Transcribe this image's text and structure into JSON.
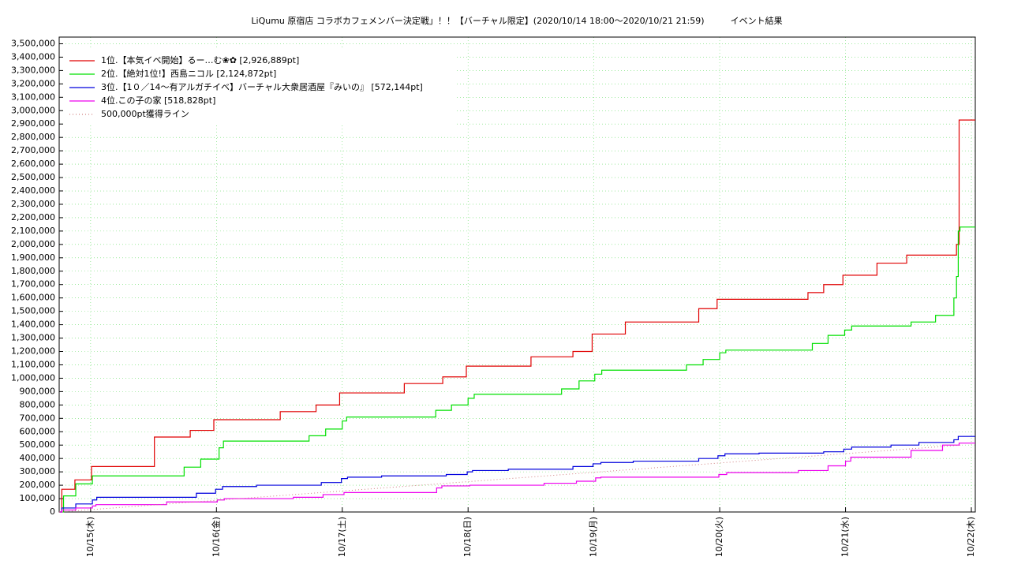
{
  "chart_data": {
    "type": "line",
    "step": "post",
    "title": "LiQumu 原宿店 コラボカフェメンバー決定戦」！！【バーチャル限定】(2020/10/14 18:00〜2020/10/21 21:59)　　　イベント結果",
    "xlim": [
      "2020-10-14T18:00",
      "2020-10-22T00:45"
    ],
    "xticks": [
      {
        "value": "2020-10-15T00:00",
        "label": "10/15(木)"
      },
      {
        "value": "2020-10-16T00:00",
        "label": "10/16(金)"
      },
      {
        "value": "2020-10-17T00:00",
        "label": "10/17(土)"
      },
      {
        "value": "2020-10-18T00:00",
        "label": "10/18(日)"
      },
      {
        "value": "2020-10-19T00:00",
        "label": "10/19(月)"
      },
      {
        "value": "2020-10-20T00:00",
        "label": "10/20(火)"
      },
      {
        "value": "2020-10-21T00:00",
        "label": "10/21(水)"
      },
      {
        "value": "2020-10-22T00:00",
        "label": "10/22(木)"
      }
    ],
    "ylim": [
      0,
      3550000
    ],
    "yticks": [
      0,
      {
        "value": 100000,
        "label": "100,000"
      },
      {
        "value": 200000,
        "label": "200,000"
      },
      {
        "value": 300000,
        "label": "300,000"
      },
      {
        "value": 400000,
        "label": "400,000"
      },
      {
        "value": 500000,
        "label": "500,000"
      },
      {
        "value": 600000,
        "label": "600,000"
      },
      {
        "value": 700000,
        "label": "700,000"
      },
      {
        "value": 800000,
        "label": "800,000"
      },
      {
        "value": 900000,
        "label": "900,000"
      },
      {
        "value": 1000000,
        "label": "1,000,000"
      },
      {
        "value": 1100000,
        "label": "1,100,000"
      },
      {
        "value": 1200000,
        "label": "1,200,000"
      },
      {
        "value": 1300000,
        "label": "1,300,000"
      },
      {
        "value": 1400000,
        "label": "1,400,000"
      },
      {
        "value": 1500000,
        "label": "1,500,000"
      },
      {
        "value": 1600000,
        "label": "1,600,000"
      },
      {
        "value": 1700000,
        "label": "1,700,000"
      },
      {
        "value": 1800000,
        "label": "1,800,000"
      },
      {
        "value": 1900000,
        "label": "1,900,000"
      },
      {
        "value": 2000000,
        "label": "2,000,000"
      },
      {
        "value": 2100000,
        "label": "2,100,000"
      },
      {
        "value": 2200000,
        "label": "2,200,000"
      },
      {
        "value": 2300000,
        "label": "2,300,000"
      },
      {
        "value": 2400000,
        "label": "2,400,000"
      },
      {
        "value": 2500000,
        "label": "2,500,000"
      },
      {
        "value": 2600000,
        "label": "2,600,000"
      },
      {
        "value": 2700000,
        "label": "2,700,000"
      },
      {
        "value": 2800000,
        "label": "2,800,000"
      },
      {
        "value": 2900000,
        "label": "2,900,000"
      },
      {
        "value": 3000000,
        "label": "3,000,000"
      },
      {
        "value": 3100000,
        "label": "3,100,000"
      },
      {
        "value": 3200000,
        "label": "3,200,000"
      },
      {
        "value": 3300000,
        "label": "3,300,000"
      },
      {
        "value": 3400000,
        "label": "3,400,000"
      },
      {
        "value": 3500000,
        "label": "3,500,000"
      }
    ],
    "grid": true,
    "legend": "upper left",
    "series": [
      {
        "name": "1位.【本気イベ開始】るー…む❀✿ [2,926,889pt]",
        "color": "#e00000",
        "x": [
          "2020-10-14T18:00",
          "2020-10-14T18:30",
          "2020-10-14T21:00",
          "2020-10-15T00:10",
          "2020-10-15T12:10",
          "2020-10-15T19:00",
          "2020-10-15T23:30",
          "2020-10-16T12:10",
          "2020-10-16T19:00",
          "2020-10-16T23:30",
          "2020-10-17T11:50",
          "2020-10-17T19:10",
          "2020-10-17T23:40",
          "2020-10-18T12:00",
          "2020-10-18T20:00",
          "2020-10-18T23:40",
          "2020-10-19T06:00",
          "2020-10-19T20:00",
          "2020-10-19T23:30",
          "2020-10-20T16:50",
          "2020-10-20T19:50",
          "2020-10-20T23:30",
          "2020-10-21T06:00",
          "2020-10-21T11:40",
          "2020-10-21T21:10",
          "2020-10-21T21:40"
        ],
        "values": [
          0,
          170000,
          240000,
          340000,
          560000,
          610000,
          690000,
          750000,
          800000,
          890000,
          960000,
          1010000,
          1090000,
          1160000,
          1200000,
          1330000,
          1420000,
          1520000,
          1590000,
          1640000,
          1700000,
          1770000,
          1860000,
          1920000,
          2000000,
          2930000
        ]
      },
      {
        "name": "2位.【絶対1位!】西島ニコル [2,124,872pt]",
        "color": "#00e000",
        "x": [
          "2020-10-14T18:00",
          "2020-10-14T18:50",
          "2020-10-14T21:10",
          "2020-10-15T00:20",
          "2020-10-15T17:50",
          "2020-10-15T21:00",
          "2020-10-16T00:30",
          "2020-10-16T01:20",
          "2020-10-16T17:40",
          "2020-10-16T20:50",
          "2020-10-17T00:00",
          "2020-10-17T00:50",
          "2020-10-17T17:50",
          "2020-10-17T20:50",
          "2020-10-18T00:00",
          "2020-10-18T01:10",
          "2020-10-18T17:50",
          "2020-10-18T21:10",
          "2020-10-19T00:10",
          "2020-10-19T01:30",
          "2020-10-19T17:40",
          "2020-10-19T20:50",
          "2020-10-20T00:00",
          "2020-10-20T01:10",
          "2020-10-20T17:40",
          "2020-10-20T20:40",
          "2020-10-20T23:50",
          "2020-10-21T01:10",
          "2020-10-21T12:30",
          "2020-10-21T17:10",
          "2020-10-21T20:40",
          "2020-10-21T21:10",
          "2020-10-21T21:30",
          "2020-10-21T21:50"
        ],
        "values": [
          0,
          120000,
          210000,
          270000,
          335000,
          395000,
          480000,
          530000,
          570000,
          620000,
          680000,
          710000,
          760000,
          800000,
          850000,
          880000,
          920000,
          980000,
          1030000,
          1060000,
          1100000,
          1140000,
          1190000,
          1210000,
          1260000,
          1320000,
          1360000,
          1390000,
          1420000,
          1470000,
          1600000,
          1760000,
          2100000,
          2130000
        ]
      },
      {
        "name": "3位.【1０／14〜有アルガチイベ】バーチャル大衆居酒屋『みいの』 [572,144pt]",
        "color": "#0000dd",
        "x": [
          "2020-10-14T18:00",
          "2020-10-14T18:30",
          "2020-10-14T21:10",
          "2020-10-15T00:20",
          "2020-10-15T01:10",
          "2020-10-15T20:10",
          "2020-10-15T23:50",
          "2020-10-16T01:10",
          "2020-10-16T07:40",
          "2020-10-16T20:00",
          "2020-10-16T23:50",
          "2020-10-17T01:00",
          "2020-10-17T07:30",
          "2020-10-17T19:50",
          "2020-10-17T23:50",
          "2020-10-18T00:50",
          "2020-10-18T07:40",
          "2020-10-18T20:00",
          "2020-10-18T23:50",
          "2020-10-19T01:20",
          "2020-10-19T07:30",
          "2020-10-19T20:00",
          "2020-10-19T23:40",
          "2020-10-20T01:00",
          "2020-10-20T07:30",
          "2020-10-20T19:50",
          "2020-10-20T23:40",
          "2020-10-21T01:10",
          "2020-10-21T08:40",
          "2020-10-21T14:00",
          "2020-10-21T20:40",
          "2020-10-21T21:30"
        ],
        "values": [
          0,
          30000,
          60000,
          90000,
          110000,
          140000,
          170000,
          190000,
          200000,
          220000,
          250000,
          260000,
          270000,
          280000,
          300000,
          310000,
          320000,
          340000,
          360000,
          370000,
          380000,
          400000,
          420000,
          435000,
          440000,
          450000,
          470000,
          485000,
          500000,
          520000,
          540000,
          565000
        ]
      },
      {
        "name": "4位.この子の家 [518,828pt]",
        "color": "#ee00ee",
        "x": [
          "2020-10-14T18:00",
          "2020-10-14T18:30",
          "2020-10-14T21:10",
          "2020-10-15T00:20",
          "2020-10-15T01:00",
          "2020-10-15T14:30",
          "2020-10-16T00:10",
          "2020-10-16T01:30",
          "2020-10-16T14:40",
          "2020-10-16T20:20",
          "2020-10-17T00:20",
          "2020-10-17T18:00",
          "2020-10-17T19:00",
          "2020-10-18T00:20",
          "2020-10-18T14:30",
          "2020-10-18T20:40",
          "2020-10-19T00:20",
          "2020-10-19T01:20",
          "2020-10-19T23:50",
          "2020-10-20T01:20",
          "2020-10-20T15:00",
          "2020-10-20T20:40",
          "2020-10-21T00:00",
          "2020-10-21T01:00",
          "2020-10-21T12:30",
          "2020-10-21T18:30",
          "2020-10-21T21:40"
        ],
        "values": [
          0,
          15000,
          30000,
          45000,
          55000,
          75000,
          90000,
          100000,
          110000,
          130000,
          145000,
          180000,
          195000,
          200000,
          215000,
          230000,
          255000,
          260000,
          280000,
          295000,
          310000,
          345000,
          380000,
          410000,
          460000,
          500000,
          515000
        ]
      },
      {
        "name": "500,000pt獲得ライン",
        "color": "#d08080",
        "style": "dotted",
        "x": [
          "2020-10-14T18:00",
          "2020-10-21T21:59"
        ],
        "values": [
          0,
          500000
        ]
      }
    ]
  }
}
